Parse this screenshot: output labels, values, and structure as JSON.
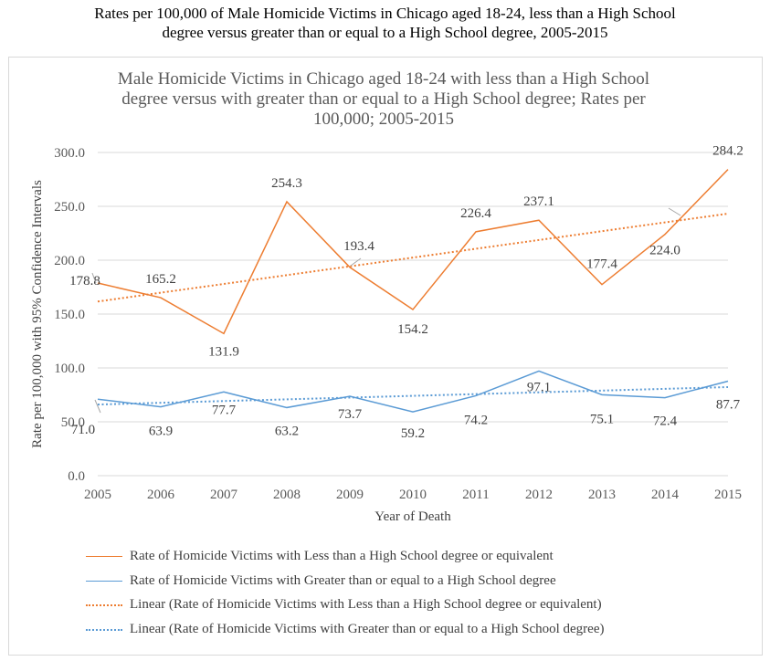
{
  "figure_title_line1": "Rates per 100,000 of Male Homicide Victims in Chicago aged 18-24, less than a High School",
  "figure_title_line2": "degree versus greater than or equal to a High School degree, 2005-2015",
  "colors": {
    "orange": "#ED7D31",
    "blue": "#5B9BD5",
    "grid": "#d9d9d9",
    "text": "#595959"
  },
  "chart_data": {
    "type": "line",
    "title_line1": "Male Homicide Victims in Chicago aged 18-24 with less than a High School",
    "title_line2": "degree versus with greater than or equal to a High School degree; Rates per",
    "title_line3": "100,000; 2005-2015",
    "xlabel": "Year of Death",
    "ylabel": "Rate per 100,000 with 95% Confidence Intervals",
    "ylim": [
      0,
      300
    ],
    "y_ticks": [
      "0.0",
      "50.0",
      "100.0",
      "150.0",
      "200.0",
      "250.0",
      "300.0"
    ],
    "categories": [
      "2005",
      "2006",
      "2007",
      "2008",
      "2009",
      "2010",
      "2011",
      "2012",
      "2013",
      "2014",
      "2015"
    ],
    "grid": true,
    "legend_position": "bottom",
    "series": [
      {
        "name": "Rate of Homicide Victims with Less than a High School degree or equivalent",
        "color": "#ED7D31",
        "style": "solid",
        "values": [
          178.8,
          165.2,
          131.9,
          254.3,
          193.4,
          154.2,
          226.4,
          237.1,
          177.4,
          224.0,
          284.2
        ],
        "labels": [
          "178.8",
          "165.2",
          "131.9",
          "254.3",
          "193.4",
          "154.2",
          "226.4",
          "237.1",
          "177.4",
          "224.0",
          "284.2"
        ]
      },
      {
        "name": "Rate of Homicide Victims with Greater than or equal to a High School degree",
        "color": "#5B9BD5",
        "style": "solid",
        "values": [
          71.0,
          63.9,
          77.7,
          63.2,
          73.7,
          59.2,
          74.2,
          97.1,
          75.1,
          72.4,
          87.7
        ],
        "labels": [
          "71.0",
          "63.9",
          "77.7",
          "63.2",
          "73.7",
          "59.2",
          "74.2",
          "97.1",
          "75.1",
          "72.4",
          "87.7"
        ]
      },
      {
        "name": "Linear (Rate of Homicide Victims with Less than a High School degree or equivalent)",
        "color": "#ED7D31",
        "style": "dotted",
        "trend_of": 0
      },
      {
        "name": "Linear (Rate of Homicide Victims with Greater than or equal to a High School degree)",
        "color": "#5B9BD5",
        "style": "dotted",
        "trend_of": 1
      }
    ]
  }
}
